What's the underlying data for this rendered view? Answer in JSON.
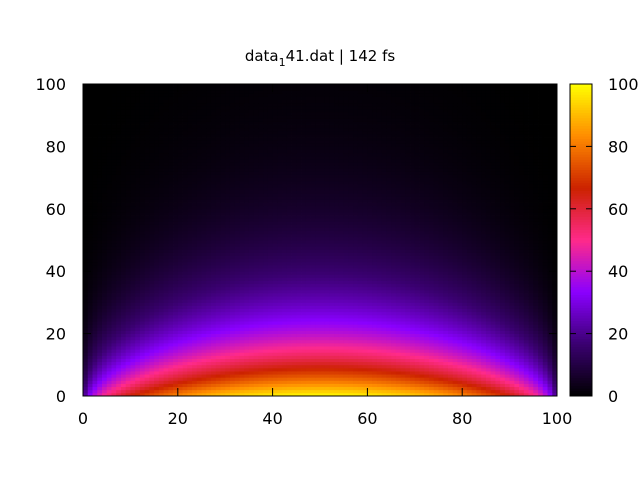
{
  "chart_data": {
    "type": "heatmap",
    "title_main": "data",
    "title_sub": "1",
    "title_rest": "41.dat | 142 fs",
    "xlabel": "",
    "ylabel": "",
    "xlim": [
      0,
      100
    ],
    "ylim": [
      0,
      100
    ],
    "zlim": [
      0,
      100
    ],
    "x_ticks": [
      "0",
      "20",
      "40",
      "60",
      "80",
      "100"
    ],
    "y_ticks": [
      "0",
      "20",
      "40",
      "60",
      "80",
      "100"
    ],
    "z_ticks": [
      "0",
      "20",
      "40",
      "60",
      "80",
      "100"
    ],
    "colormap": "gnuplot-pm3d (black-purple-red-orange-yellow)",
    "colormap_stops": [
      "#000000",
      "#3a0070",
      "#8a00ff",
      "#ff2a8a",
      "#cc2200",
      "#ff8c00",
      "#ffff00"
    ],
    "description_grid": "values highest (~100) along y=0 in the middle of x, falling off with increasing y and toward x=0 and x=100",
    "rows_y": [
      0,
      10,
      20,
      30,
      40,
      60,
      80,
      100
    ],
    "peak_profile_at_x50": [
      95,
      70,
      45,
      28,
      18,
      8,
      3,
      1
    ],
    "grid": false,
    "legend": "colorbar-right"
  }
}
